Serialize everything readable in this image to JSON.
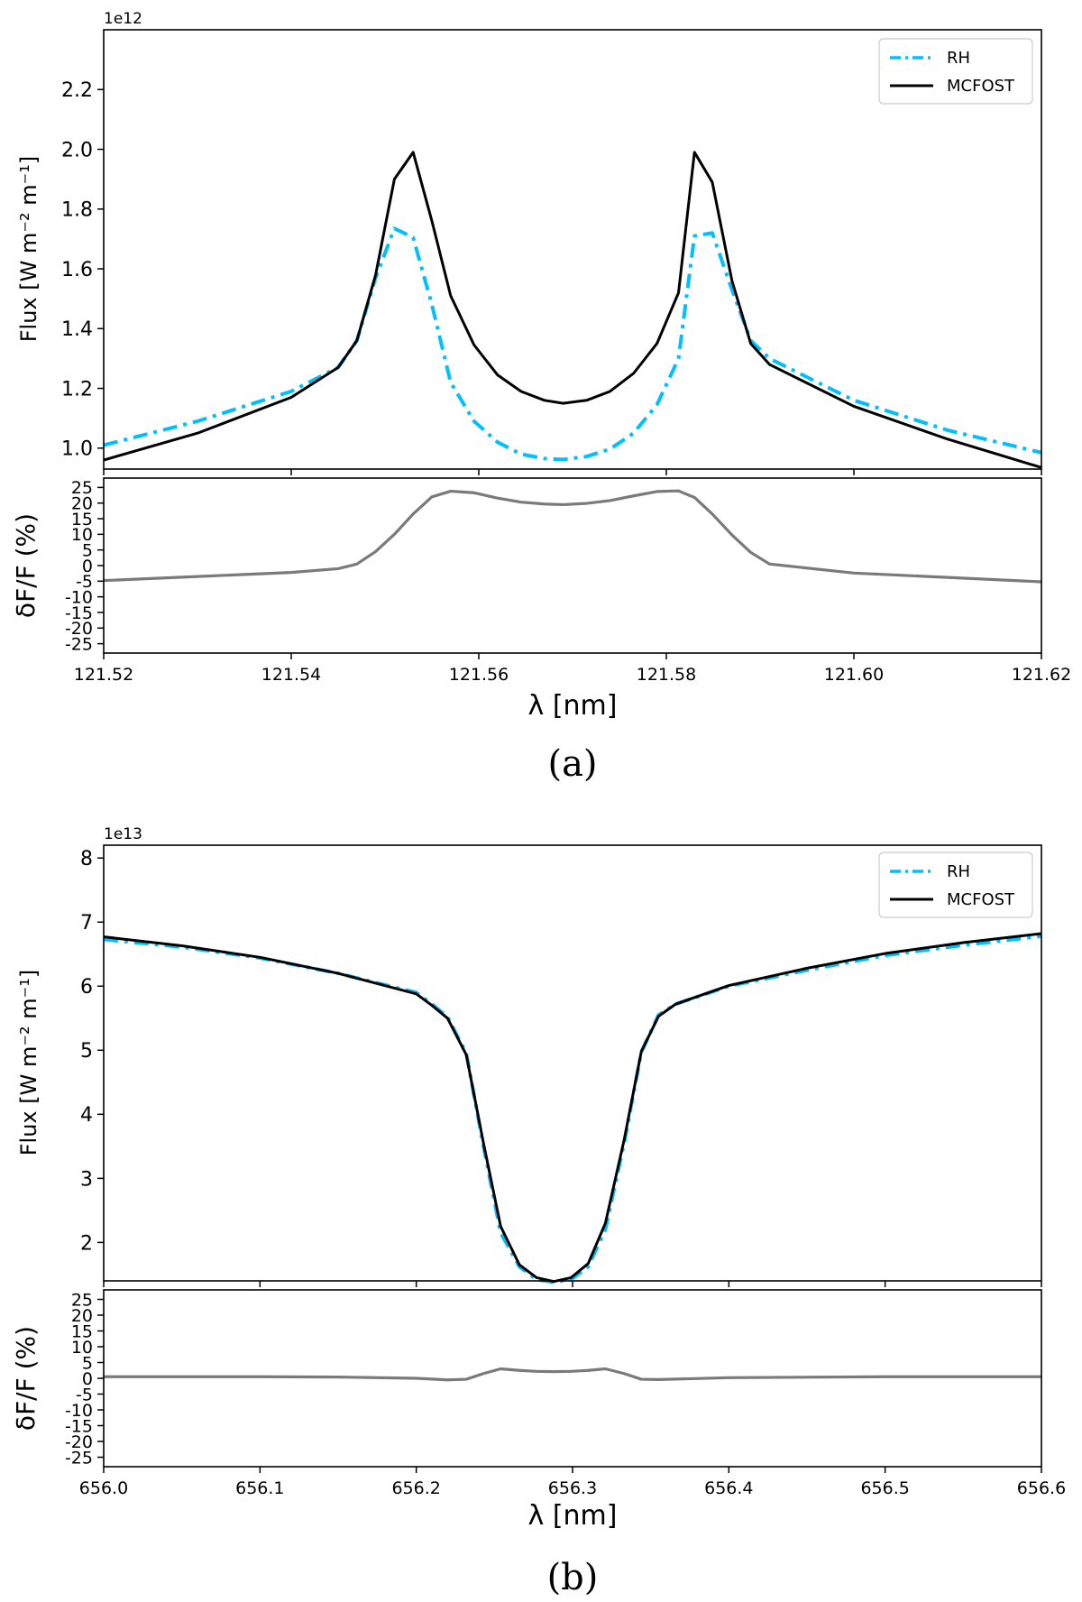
{
  "colors": {
    "rh": "#00BFFF",
    "mcfost": "#000000",
    "ratio": "#7a7a7a",
    "axes": "#000000"
  },
  "panels": [
    {
      "caption": "(a)",
      "scale_label": "1e12",
      "xlabel": "λ [nm]",
      "flux_ylabel": "Flux [W m⁻² m⁻¹]",
      "ratio_ylabel": "δF/F (%)",
      "legend": [
        "RH",
        "MCFOST"
      ]
    },
    {
      "caption": "(b)",
      "scale_label": "1e13",
      "xlabel": "λ [nm]",
      "flux_ylabel": "Flux [W m⁻² m⁻¹]",
      "ratio_ylabel": "δF/F (%)",
      "legend": [
        "RH",
        "MCFOST"
      ]
    }
  ],
  "chart_data": [
    {
      "type": "line",
      "panel": "a",
      "title": "",
      "xlabel": "λ [nm]",
      "ylabel": "Flux [W m⁻² m⁻¹]",
      "y_scale": "1e12",
      "xlim": [
        121.52,
        121.62
      ],
      "ylim": [
        0.93,
        2.4
      ],
      "x_ticks": [
        "121.52",
        "121.54",
        "121.56",
        "121.58",
        "121.60",
        "121.62"
      ],
      "y_ticks": [
        "1.0",
        "1.2",
        "1.4",
        "1.6",
        "1.8",
        "2.0",
        "2.2"
      ],
      "legend_position": "top-right",
      "series": [
        {
          "name": "RH",
          "style": "dash-dot",
          "x": [
            121.52,
            121.53,
            121.54,
            121.545,
            121.547,
            121.549,
            121.551,
            121.553,
            121.555,
            121.557,
            121.5595,
            121.562,
            121.5645,
            121.567,
            121.569,
            121.5715,
            121.574,
            121.5765,
            121.579,
            121.5813,
            121.583,
            121.5849,
            121.587,
            121.589,
            121.591,
            121.6,
            121.61,
            121.62
          ],
          "values": [
            1.01,
            1.09,
            1.19,
            1.27,
            1.36,
            1.57,
            1.735,
            1.705,
            1.48,
            1.22,
            1.09,
            1.02,
            0.98,
            0.965,
            0.962,
            0.972,
            0.997,
            1.05,
            1.145,
            1.3,
            1.71,
            1.72,
            1.53,
            1.36,
            1.3,
            1.16,
            1.06,
            0.985
          ]
        },
        {
          "name": "MCFOST",
          "style": "solid",
          "x": [
            121.52,
            121.53,
            121.54,
            121.545,
            121.547,
            121.549,
            121.551,
            121.553,
            121.555,
            121.557,
            121.5595,
            121.562,
            121.5645,
            121.567,
            121.569,
            121.5715,
            121.574,
            121.5765,
            121.579,
            121.5813,
            121.583,
            121.5849,
            121.587,
            121.589,
            121.591,
            121.6,
            121.61,
            121.62
          ],
          "values": [
            0.96,
            1.05,
            1.17,
            1.27,
            1.36,
            1.58,
            1.9,
            1.99,
            1.76,
            1.51,
            1.345,
            1.245,
            1.19,
            1.16,
            1.15,
            1.16,
            1.19,
            1.25,
            1.35,
            1.52,
            1.99,
            1.89,
            1.56,
            1.35,
            1.28,
            1.14,
            1.03,
            0.935
          ]
        }
      ]
    },
    {
      "type": "line",
      "panel": "a",
      "title": "",
      "xlabel": "λ [nm]",
      "ylabel": "δF/F (%)",
      "xlim": [
        121.52,
        121.62
      ],
      "ylim": [
        -28,
        28
      ],
      "x_ticks": [
        "121.52",
        "121.54",
        "121.56",
        "121.58",
        "121.60",
        "121.62"
      ],
      "y_ticks": [
        "-25",
        "-20",
        "-15",
        "-10",
        "-5",
        "0",
        "5",
        "10",
        "15",
        "20",
        "25"
      ],
      "series": [
        {
          "name": "δF/F",
          "style": "solid",
          "x": [
            121.52,
            121.53,
            121.54,
            121.545,
            121.547,
            121.549,
            121.551,
            121.553,
            121.555,
            121.557,
            121.5595,
            121.562,
            121.5645,
            121.567,
            121.569,
            121.5715,
            121.574,
            121.5765,
            121.579,
            121.5813,
            121.583,
            121.5849,
            121.587,
            121.589,
            121.591,
            121.6,
            121.61,
            121.62
          ],
          "values": [
            -4.8,
            -3.5,
            -2.2,
            -1.0,
            0.5,
            4.5,
            10.0,
            16.5,
            22.0,
            23.8,
            23.3,
            21.6,
            20.3,
            19.7,
            19.5,
            19.9,
            20.8,
            22.3,
            23.7,
            23.9,
            21.8,
            16.5,
            9.8,
            4.2,
            0.5,
            -2.4,
            -3.8,
            -5.2
          ]
        }
      ]
    },
    {
      "type": "line",
      "panel": "b",
      "title": "",
      "xlabel": "λ [nm]",
      "ylabel": "Flux [W m⁻² m⁻¹]",
      "y_scale": "1e13",
      "xlim": [
        656.0,
        656.6
      ],
      "ylim": [
        1.4,
        8.2
      ],
      "x_ticks": [
        "656.0",
        "656.1",
        "656.2",
        "656.3",
        "656.4",
        "656.5",
        "656.6"
      ],
      "y_ticks": [
        "2",
        "3",
        "4",
        "5",
        "6",
        "7",
        "8"
      ],
      "legend_position": "top-right",
      "series": [
        {
          "name": "RH",
          "style": "dash-dot",
          "x": [
            656.0,
            656.05,
            656.1,
            656.15,
            656.2,
            656.21,
            656.22,
            656.232,
            656.243,
            656.254,
            656.266,
            656.277,
            656.288,
            656.299,
            656.31,
            656.321,
            656.333,
            656.344,
            656.355,
            656.366,
            656.4,
            656.45,
            656.5,
            656.55,
            656.6
          ],
          "values": [
            6.73,
            6.61,
            6.44,
            6.2,
            5.9,
            5.72,
            5.52,
            4.95,
            3.5,
            2.15,
            1.62,
            1.42,
            1.38,
            1.42,
            1.62,
            2.2,
            3.55,
            4.97,
            5.55,
            5.72,
            6.0,
            6.25,
            6.48,
            6.64,
            6.78
          ]
        },
        {
          "name": "MCFOST",
          "style": "solid",
          "x": [
            656.0,
            656.05,
            656.1,
            656.15,
            656.2,
            656.21,
            656.22,
            656.232,
            656.243,
            656.254,
            656.266,
            656.277,
            656.288,
            656.299,
            656.31,
            656.321,
            656.333,
            656.344,
            656.355,
            656.366,
            656.4,
            656.45,
            656.5,
            656.55,
            656.6
          ],
          "values": [
            6.77,
            6.63,
            6.45,
            6.2,
            5.88,
            5.7,
            5.5,
            4.93,
            3.55,
            2.25,
            1.65,
            1.45,
            1.39,
            1.45,
            1.67,
            2.3,
            3.6,
            4.98,
            5.53,
            5.72,
            6.01,
            6.28,
            6.51,
            6.68,
            6.82
          ]
        }
      ]
    },
    {
      "type": "line",
      "panel": "b",
      "title": "",
      "xlabel": "λ [nm]",
      "ylabel": "δF/F (%)",
      "xlim": [
        656.0,
        656.6
      ],
      "ylim": [
        -28,
        28
      ],
      "x_ticks": [
        "656.0",
        "656.1",
        "656.2",
        "656.3",
        "656.4",
        "656.5",
        "656.6"
      ],
      "y_ticks": [
        "-25",
        "-20",
        "-15",
        "-10",
        "-5",
        "0",
        "5",
        "10",
        "15",
        "20",
        "25"
      ],
      "series": [
        {
          "name": "δF/F",
          "style": "solid",
          "x": [
            656.0,
            656.1,
            656.15,
            656.2,
            656.22,
            656.232,
            656.243,
            656.254,
            656.266,
            656.277,
            656.288,
            656.299,
            656.31,
            656.321,
            656.333,
            656.344,
            656.355,
            656.4,
            656.5,
            656.6
          ],
          "values": [
            0.5,
            0.5,
            0.4,
            0.0,
            -0.5,
            -0.3,
            1.5,
            3.0,
            2.5,
            2.2,
            2.1,
            2.2,
            2.5,
            3.0,
            1.5,
            -0.3,
            -0.4,
            0.2,
            0.5,
            0.5
          ]
        }
      ]
    }
  ]
}
